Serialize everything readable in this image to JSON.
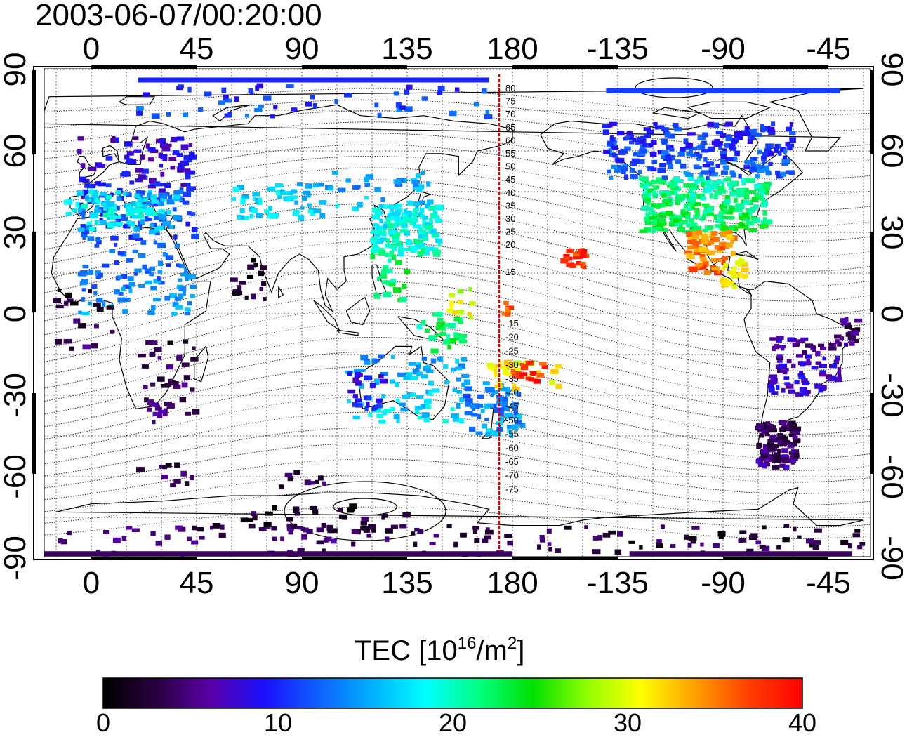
{
  "title": "2003-06-07/00:20:00",
  "map": {
    "type": "world TEC map",
    "lon_ticks_top": [
      "0",
      "45",
      "90",
      "135",
      "180",
      "-135",
      "-90",
      "-45"
    ],
    "lon_ticks_bottom": [
      "0",
      "45",
      "90",
      "135",
      "180",
      "-135",
      "-90",
      "-45"
    ],
    "lat_ticks_left": [
      "90",
      "60",
      "30",
      "0",
      "-30",
      "-60",
      "-90"
    ],
    "lat_ticks_right": [
      "90",
      "60",
      "30",
      "0",
      "-30",
      "-60",
      "-90"
    ],
    "meridian_marker_lon": 175,
    "meridian_marker_color": "#dd0000",
    "mag_lat_labels_north": [
      "80",
      "75",
      "70",
      "65",
      "60",
      "55",
      "50",
      "45",
      "40",
      "35",
      "30",
      "25",
      "20",
      "15"
    ],
    "mag_lat_labels_south": [
      "-15",
      "-20",
      "-25",
      "-30",
      "-35",
      "-40",
      "-45",
      "-50",
      "-55",
      "-60",
      "-65",
      "-70",
      "-75"
    ],
    "grid": "dotted every 15 degrees"
  },
  "colorbar": {
    "title_prefix": "TEC  [10",
    "title_exp1": "16",
    "title_mid": "/m",
    "title_exp2": "2",
    "title_suffix": "]",
    "range": [
      0,
      40
    ],
    "tick_labels": [
      "0",
      "10",
      "20",
      "30",
      "40"
    ],
    "colors": [
      "#000000",
      "#2a0040",
      "#5a00a8",
      "#1a10ff",
      "#1060ff",
      "#00b0ff",
      "#00ffff",
      "#00ff80",
      "#00e000",
      "#90ff00",
      "#ffff00",
      "#ffa000",
      "#ff4000",
      "#ff0000"
    ]
  }
}
